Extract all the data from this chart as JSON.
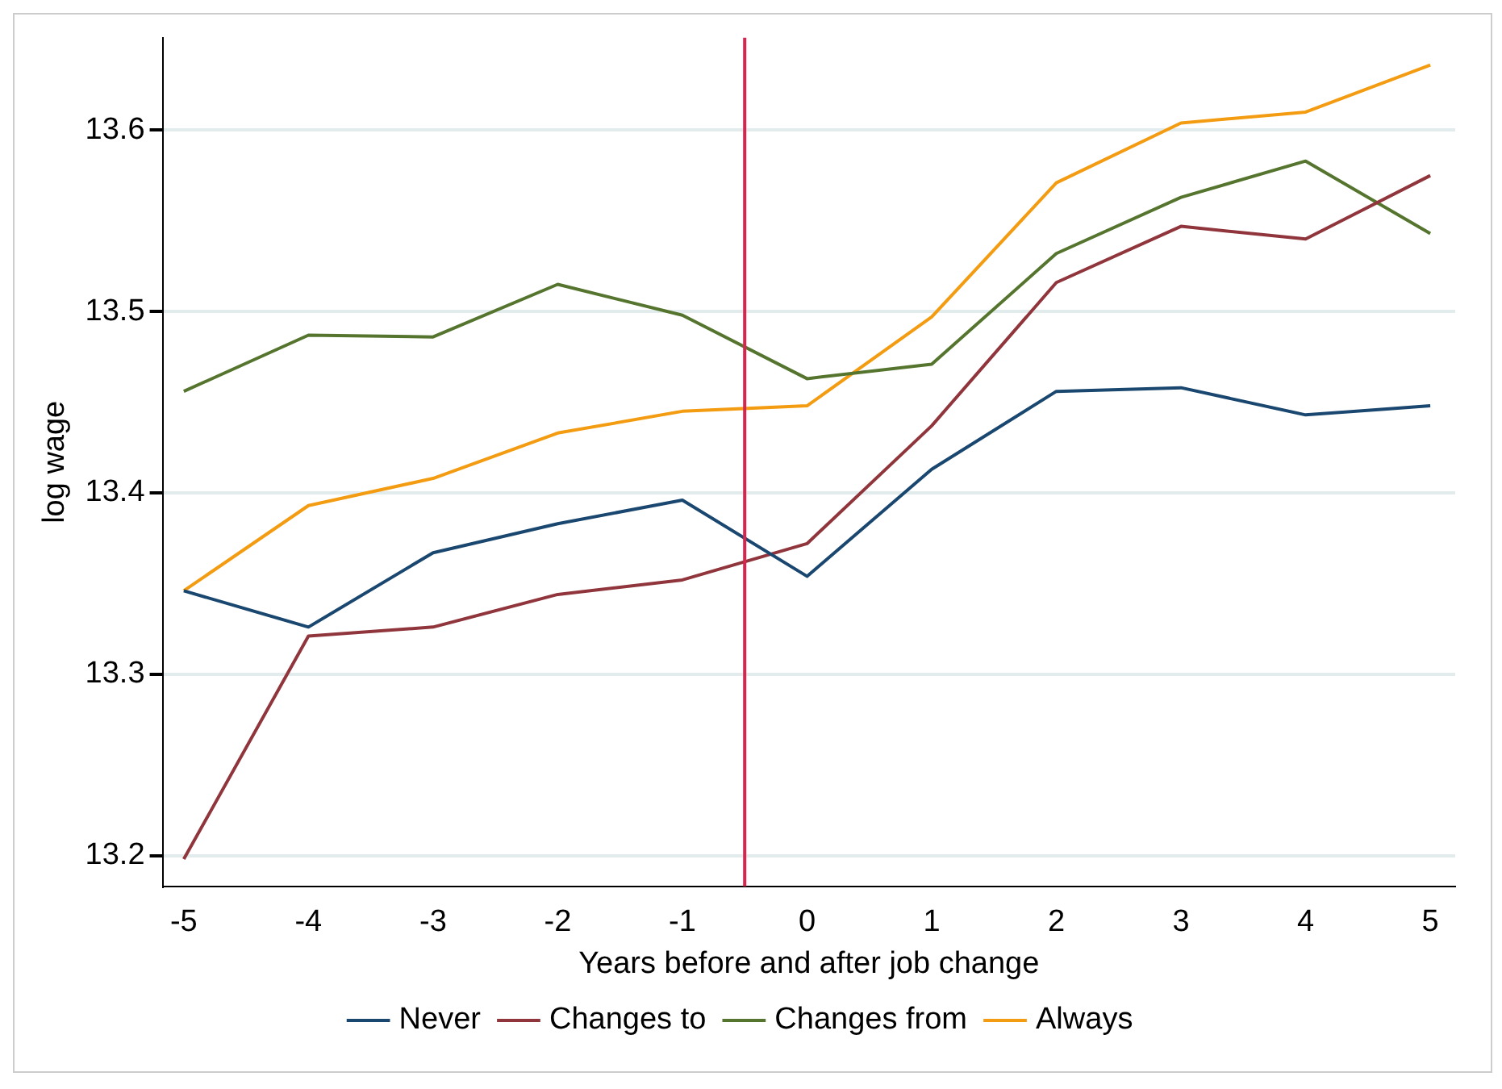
{
  "chart_data": {
    "type": "line",
    "xlabel": "Years before and after job change",
    "ylabel": "log wage",
    "x": [
      -5,
      -4,
      -3,
      -2,
      -1,
      0,
      1,
      2,
      3,
      4,
      5
    ],
    "series": [
      {
        "name": "Never",
        "color": "#1a476f",
        "values": [
          13.346,
          13.326,
          13.367,
          13.383,
          13.396,
          13.354,
          13.413,
          13.456,
          13.458,
          13.443,
          13.448
        ]
      },
      {
        "name": "Changes to",
        "color": "#90353b",
        "values": [
          13.198,
          13.321,
          13.326,
          13.344,
          13.352,
          13.372,
          13.437,
          13.516,
          13.547,
          13.54,
          13.575
        ]
      },
      {
        "name": "Changes from",
        "color": "#55752f",
        "values": [
          13.456,
          13.487,
          13.486,
          13.515,
          13.498,
          13.463,
          13.471,
          13.532,
          13.563,
          13.583,
          13.543
        ]
      },
      {
        "name": "Always",
        "color": "#f39c12",
        "values": [
          13.346,
          13.393,
          13.408,
          13.433,
          13.445,
          13.448,
          13.497,
          13.571,
          13.604,
          13.61,
          13.636
        ]
      }
    ],
    "xlim": [
      -5.17,
      5.2
    ],
    "xticks": [
      -5,
      -4,
      -3,
      -2,
      -1,
      0,
      1,
      2,
      3,
      4,
      5
    ],
    "ylim": [
      13.183,
      13.651
    ],
    "yticks": [
      13.2,
      13.3,
      13.4,
      13.5,
      13.6
    ],
    "ref_lines": [
      {
        "axis": "x",
        "value": -0.5,
        "color": "#d6264f"
      }
    ],
    "grid": "y",
    "legend": "bottom",
    "marker": "none",
    "line_style": "solid"
  }
}
